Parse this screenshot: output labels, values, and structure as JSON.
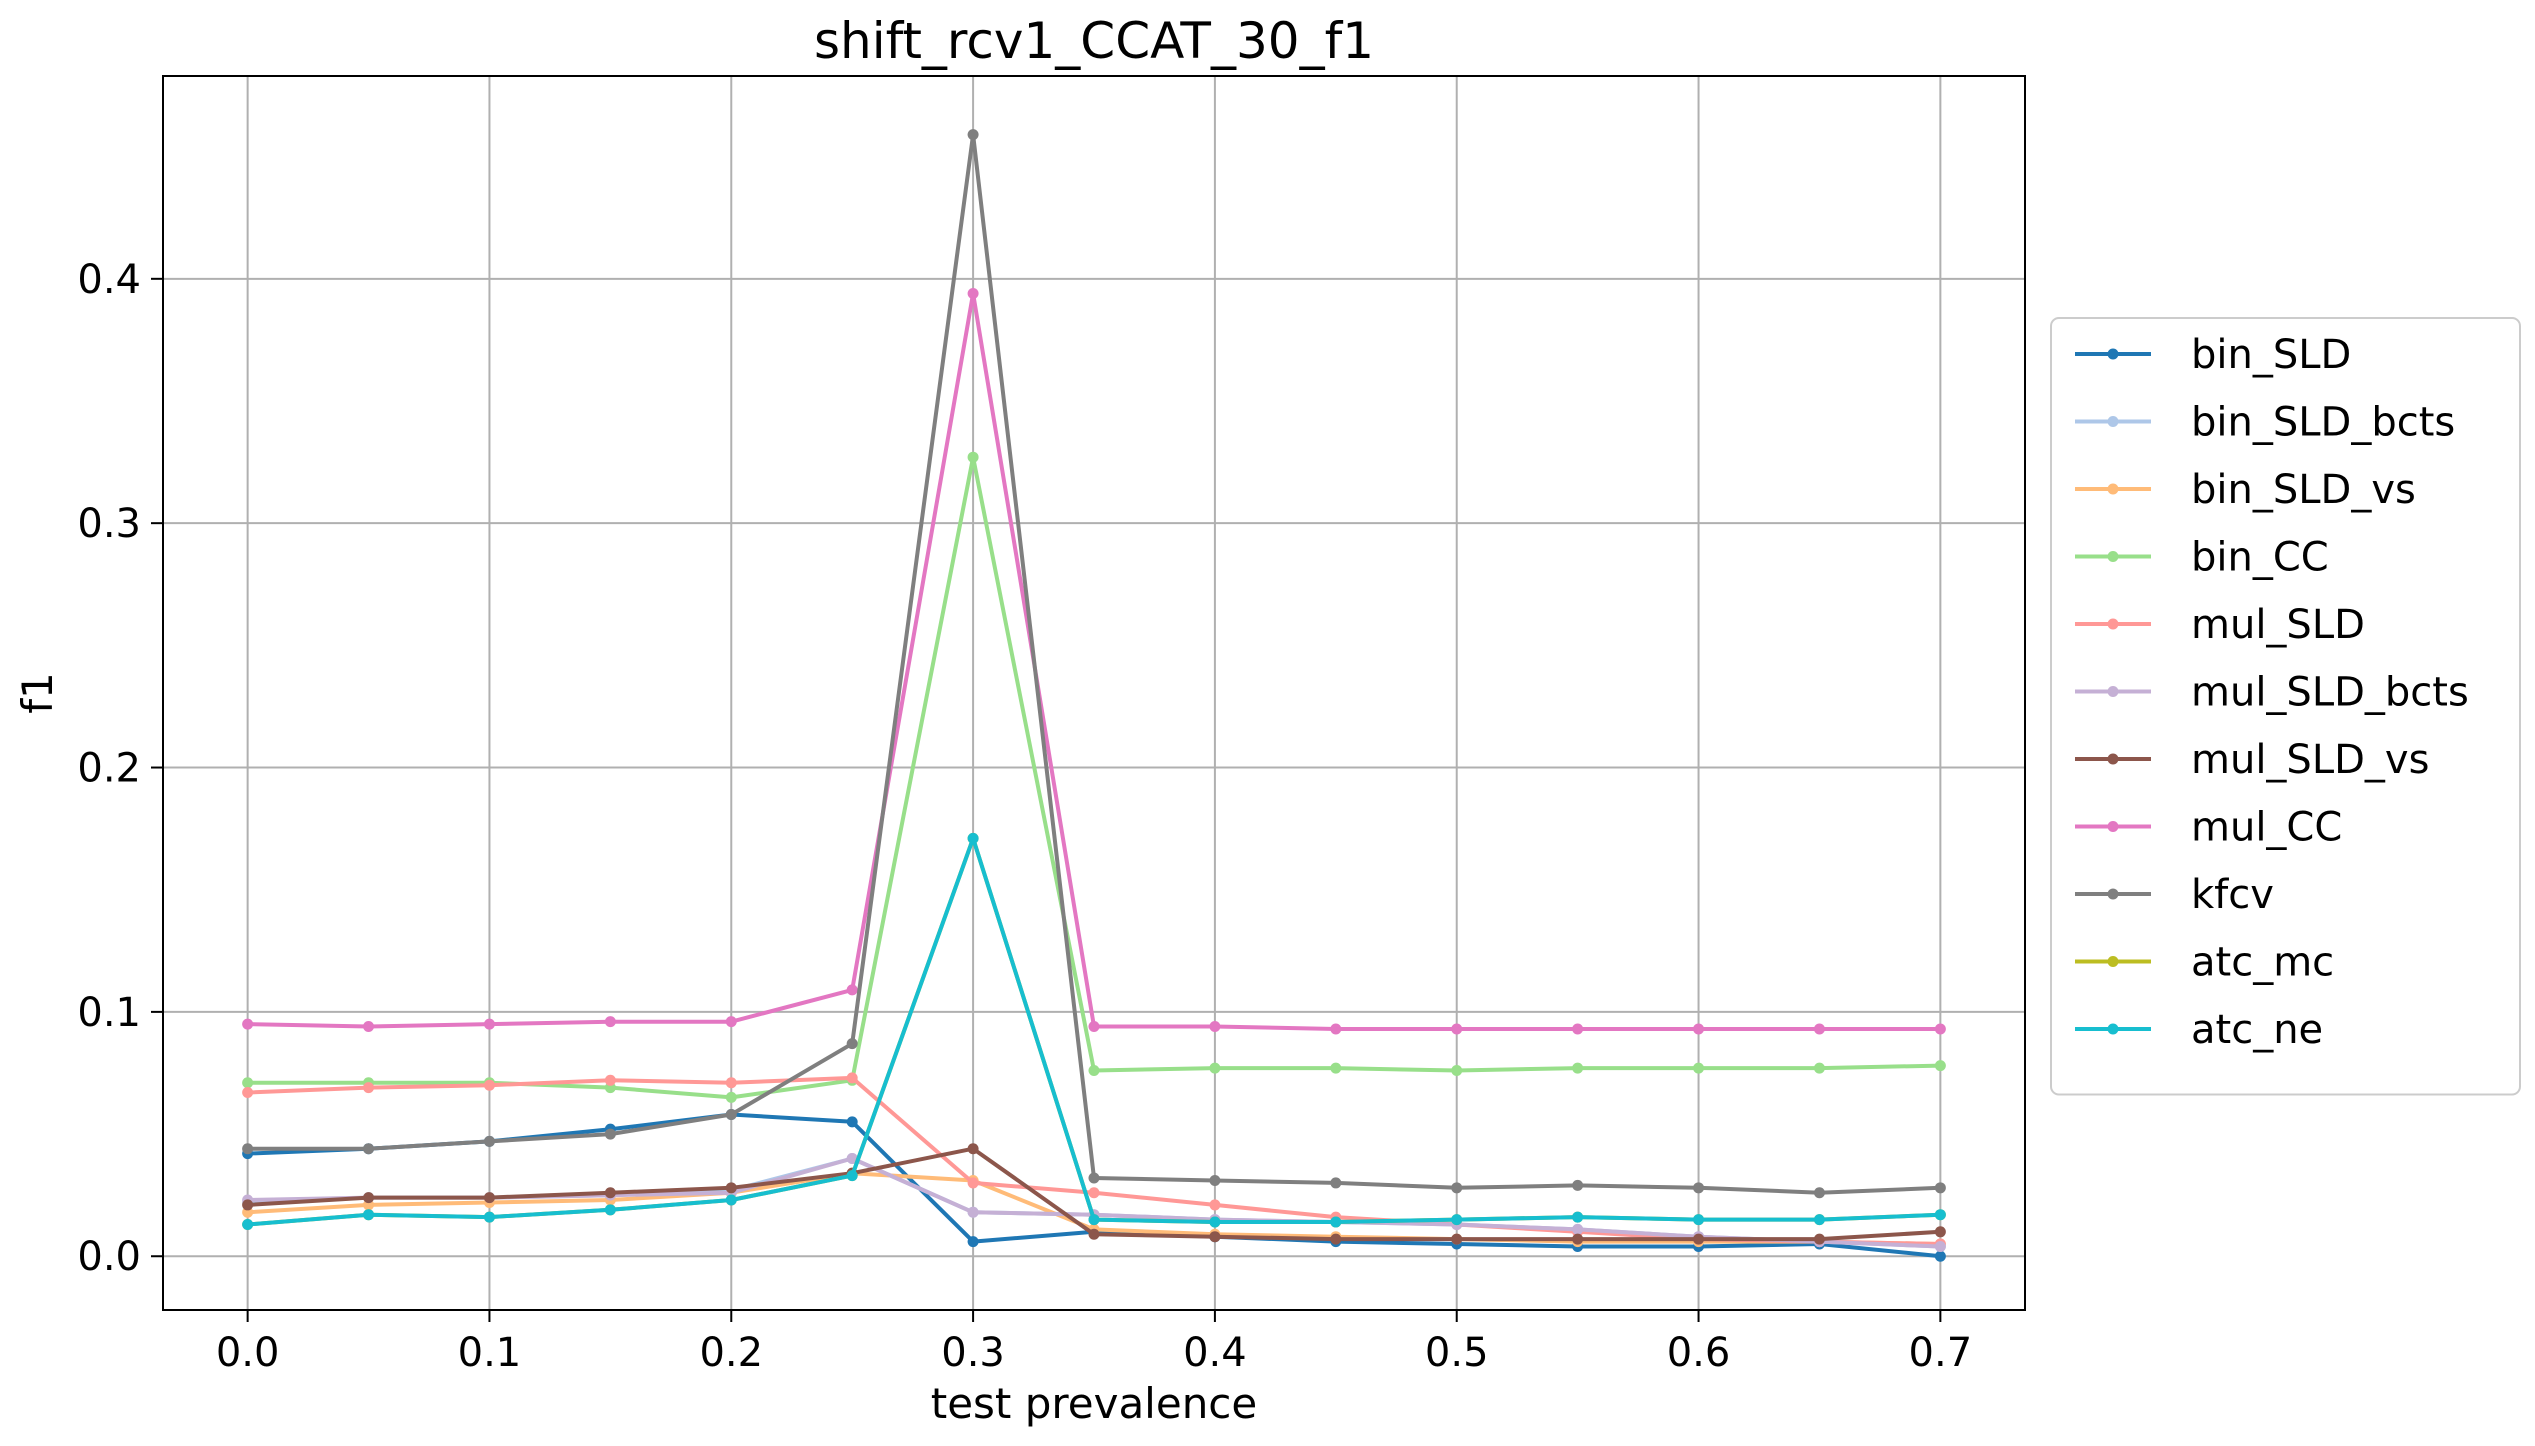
{
  "chart_data": {
    "type": "line",
    "title": "shift_rcv1_CCAT_30_f1",
    "xlabel": "test prevalence",
    "ylabel": "f1",
    "xlim": [
      -0.035,
      0.735
    ],
    "ylim": [
      -0.022,
      0.483
    ],
    "xticks": [
      0.0,
      0.1,
      0.2,
      0.3,
      0.4,
      0.5,
      0.6,
      0.7
    ],
    "xtick_labels": [
      "0.0",
      "0.1",
      "0.2",
      "0.3",
      "0.4",
      "0.5",
      "0.6",
      "0.7"
    ],
    "yticks": [
      0.0,
      0.1,
      0.2,
      0.3,
      0.4
    ],
    "ytick_labels": [
      "0.0",
      "0.1",
      "0.2",
      "0.3",
      "0.4"
    ],
    "grid": true,
    "legend_position": "outside-right",
    "x": [
      0.0,
      0.05,
      0.1,
      0.15,
      0.2,
      0.25,
      0.3,
      0.35,
      0.4,
      0.45,
      0.5,
      0.55,
      0.6,
      0.65,
      0.7
    ],
    "series": [
      {
        "name": "bin_SLD",
        "color": "#1f77b4",
        "values": [
          0.042,
          0.044,
          0.047,
          0.052,
          0.058,
          0.055,
          0.006,
          0.01,
          0.008,
          0.006,
          0.005,
          0.004,
          0.004,
          0.005,
          0.0
        ]
      },
      {
        "name": "bin_SLD_bcts",
        "color": "#aec7e8",
        "values": [
          0.022,
          0.024,
          0.024,
          0.025,
          0.027,
          0.04,
          0.018,
          0.017,
          0.015,
          0.014,
          0.013,
          0.011,
          0.008,
          0.006,
          0.004
        ]
      },
      {
        "name": "bin_SLD_vs",
        "color": "#ffbb78",
        "values": [
          0.018,
          0.021,
          0.022,
          0.023,
          0.026,
          0.034,
          0.031,
          0.011,
          0.009,
          0.008,
          0.007,
          0.006,
          0.006,
          0.006,
          0.005
        ]
      },
      {
        "name": "bin_CC",
        "color": "#98df8a",
        "values": [
          0.071,
          0.071,
          0.071,
          0.069,
          0.065,
          0.072,
          0.327,
          0.076,
          0.077,
          0.077,
          0.076,
          0.077,
          0.077,
          0.077,
          0.078
        ]
      },
      {
        "name": "mul_SLD",
        "color": "#ff9896",
        "values": [
          0.067,
          0.069,
          0.07,
          0.072,
          0.071,
          0.073,
          0.03,
          0.026,
          0.021,
          0.016,
          0.013,
          0.01,
          0.007,
          0.006,
          0.005
        ]
      },
      {
        "name": "mul_SLD_bcts",
        "color": "#c5b0d5",
        "values": [
          0.023,
          0.024,
          0.024,
          0.025,
          0.026,
          0.04,
          0.018,
          0.017,
          0.015,
          0.014,
          0.013,
          0.011,
          0.008,
          0.006,
          0.004
        ]
      },
      {
        "name": "mul_SLD_vs",
        "color": "#8c564b",
        "values": [
          0.021,
          0.024,
          0.024,
          0.026,
          0.028,
          0.034,
          0.044,
          0.009,
          0.008,
          0.007,
          0.007,
          0.007,
          0.007,
          0.007,
          0.01
        ]
      },
      {
        "name": "mul_CC",
        "color": "#e377c2",
        "values": [
          0.095,
          0.094,
          0.095,
          0.096,
          0.096,
          0.109,
          0.394,
          0.094,
          0.094,
          0.093,
          0.093,
          0.093,
          0.093,
          0.093,
          0.093
        ]
      },
      {
        "name": "kfcv",
        "color": "#7f7f7f",
        "values": [
          0.044,
          0.044,
          0.047,
          0.05,
          0.058,
          0.087,
          0.459,
          0.032,
          0.031,
          0.03,
          0.028,
          0.029,
          0.028,
          0.026,
          0.028
        ]
      },
      {
        "name": "atc_mc",
        "color": "#bcbd22",
        "values": [
          0.013,
          0.017,
          0.016,
          0.019,
          0.023,
          0.033,
          0.171,
          0.015,
          0.014,
          0.014,
          0.015,
          0.016,
          0.015,
          0.015,
          0.017
        ]
      },
      {
        "name": "atc_ne",
        "color": "#17becf",
        "values": [
          0.013,
          0.017,
          0.016,
          0.019,
          0.023,
          0.033,
          0.171,
          0.015,
          0.014,
          0.014,
          0.015,
          0.016,
          0.015,
          0.015,
          0.017
        ]
      }
    ]
  }
}
